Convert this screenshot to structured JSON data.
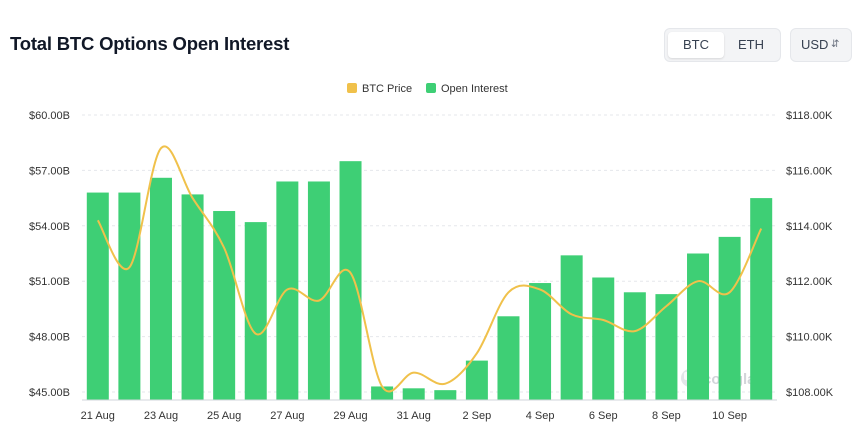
{
  "title": "Total BTC Options Open Interest",
  "asset_toggle": {
    "options": [
      "BTC",
      "ETH"
    ],
    "selected": "BTC"
  },
  "currency": {
    "selected": "USD",
    "icon": "chevron-up-down-icon"
  },
  "watermark": "coinglass",
  "colors": {
    "bars": "#3ecf75",
    "line": "#f0c14b",
    "grid": "#e5e7eb",
    "axis_text": "#333333"
  },
  "chart_data": {
    "type": "bar",
    "legend": [
      {
        "name": "BTC Price",
        "color": "#f0c14b"
      },
      {
        "name": "Open Interest",
        "color": "#3ecf75"
      }
    ],
    "legend_position": "top-center",
    "x": [
      "21 Aug",
      "22 Aug",
      "23 Aug",
      "24 Aug",
      "25 Aug",
      "26 Aug",
      "27 Aug",
      "28 Aug",
      "29 Aug",
      "30 Aug",
      "31 Aug",
      "1 Sep",
      "2 Sep",
      "3 Sep",
      "4 Sep",
      "5 Sep",
      "6 Sep",
      "7 Sep",
      "8 Sep",
      "9 Sep",
      "10 Sep",
      "11 Sep"
    ],
    "x_tick_labels": [
      "21 Aug",
      "23 Aug",
      "25 Aug",
      "27 Aug",
      "29 Aug",
      "31 Aug",
      "2 Sep",
      "4 Sep",
      "6 Sep",
      "8 Sep",
      "10 Sep"
    ],
    "series": [
      {
        "name": "Open Interest",
        "type": "bar",
        "axis": "left",
        "values": [
          55.8,
          55.8,
          56.6,
          55.7,
          54.8,
          54.2,
          56.4,
          56.4,
          57.5,
          45.3,
          45.2,
          45.1,
          46.7,
          49.1,
          50.9,
          52.4,
          51.2,
          50.4,
          50.3,
          52.5,
          53.4,
          55.5
        ]
      },
      {
        "name": "BTC Price",
        "type": "line",
        "axis": "right",
        "values": [
          114200,
          112500,
          116800,
          115000,
          113200,
          110100,
          111700,
          111300,
          112300,
          108200,
          108700,
          108300,
          109400,
          111600,
          111700,
          110800,
          110600,
          110200,
          111100,
          112000,
          111600,
          113900
        ]
      }
    ],
    "y_left": {
      "ticks": [
        "$45.00B",
        "$48.00B",
        "$51.00B",
        "$54.00B",
        "$57.00B",
        "$60.00B"
      ],
      "range": [
        45,
        60
      ]
    },
    "y_right": {
      "ticks": [
        "$108.00K",
        "$110.00K",
        "$112.00K",
        "$114.00K",
        "$116.00K",
        "$118.00K"
      ],
      "range": [
        108000,
        118000
      ]
    },
    "grid": true
  }
}
